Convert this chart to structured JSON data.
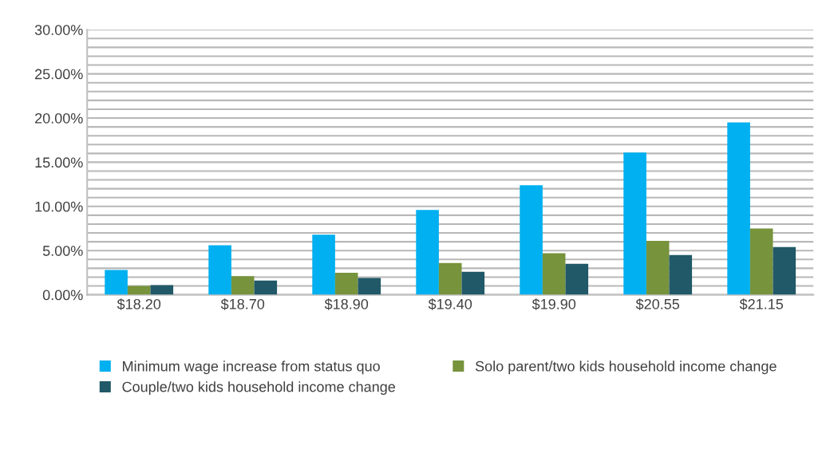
{
  "chart_data": {
    "type": "bar",
    "categories": [
      "$18.20",
      "$18.70",
      "$18.90",
      "$19.40",
      "$19.90",
      "$20.55",
      "$21.15"
    ],
    "series": [
      {
        "name": "Minimum wage increase from status quo",
        "color": "#00b0f0",
        "values": [
          2.8,
          5.6,
          6.8,
          9.6,
          12.4,
          16.1,
          19.5
        ]
      },
      {
        "name": "Solo parent/two kids household income change",
        "color": "#77933c",
        "values": [
          1.0,
          2.1,
          2.5,
          3.6,
          4.7,
          6.1,
          7.5
        ]
      },
      {
        "name": "Couple/two kids household income change",
        "color": "#215968",
        "values": [
          1.1,
          1.6,
          1.9,
          2.6,
          3.5,
          4.5,
          5.4
        ]
      }
    ],
    "ylim": [
      0,
      30
    ],
    "yticks": [
      {
        "value": 0,
        "label": "0.00%"
      },
      {
        "value": 1,
        "label": null
      },
      {
        "value": 2,
        "label": null
      },
      {
        "value": 3,
        "label": null
      },
      {
        "value": 4,
        "label": null
      },
      {
        "value": 5,
        "label": "5.00%"
      },
      {
        "value": 6,
        "label": null
      },
      {
        "value": 7,
        "label": null
      },
      {
        "value": 8,
        "label": null
      },
      {
        "value": 9,
        "label": null
      },
      {
        "value": 10,
        "label": "10.00%"
      },
      {
        "value": 11,
        "label": null
      },
      {
        "value": 12,
        "label": null
      },
      {
        "value": 13,
        "label": null
      },
      {
        "value": 14,
        "label": null
      },
      {
        "value": 15,
        "label": "15.00%"
      },
      {
        "value": 16,
        "label": null
      },
      {
        "value": 17,
        "label": null
      },
      {
        "value": 18,
        "label": null
      },
      {
        "value": 19,
        "label": null
      },
      {
        "value": 20,
        "label": "20.00%"
      },
      {
        "value": 21,
        "label": null
      },
      {
        "value": 22,
        "label": null
      },
      {
        "value": 23,
        "label": null
      },
      {
        "value": 24,
        "label": null
      },
      {
        "value": 25,
        "label": "25.00%"
      },
      {
        "value": 26,
        "label": null
      },
      {
        "value": 27,
        "label": null
      },
      {
        "value": 28,
        "label": null
      },
      {
        "value": 29,
        "label": null
      },
      {
        "value": 30,
        "label": "30.00%"
      }
    ],
    "grid": "y",
    "legend": "bottom"
  }
}
